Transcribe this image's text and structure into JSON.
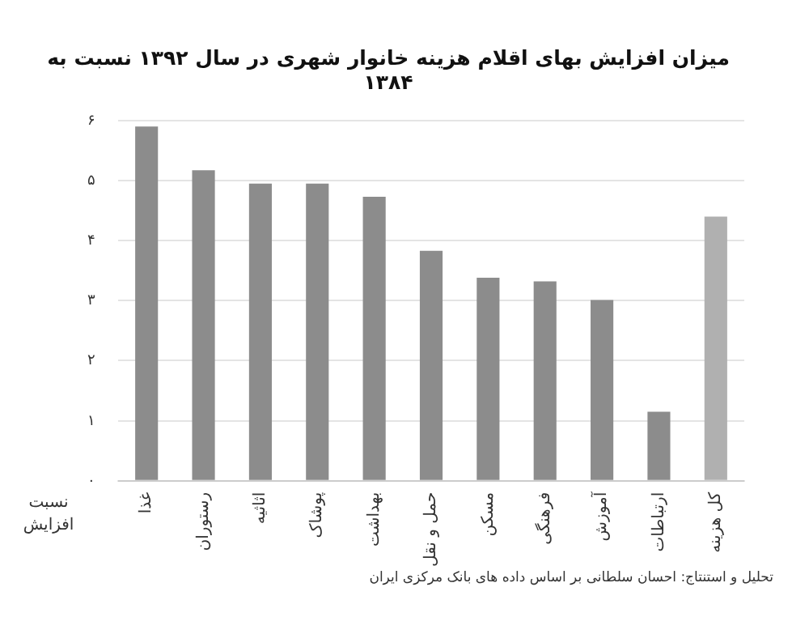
{
  "chart_data": {
    "type": "bar",
    "title": "میزان افزایش بهای اقلام هزینه خانوار شهری در سال ۱۳۹۲ نسبت به ۱۳۸۴",
    "xlabel": "نسبت افزایش",
    "categories": [
      "غذا",
      "رستوران",
      "اثاثیه",
      "پوشاک",
      "بهداشت",
      "حمل و نقل",
      "مسکن",
      "فرهنگی",
      "آموزش",
      "ارتباطات",
      "کل هزینه"
    ],
    "values": [
      5.9,
      5.17,
      4.95,
      4.95,
      4.73,
      3.83,
      3.38,
      3.32,
      3.01,
      1.15,
      4.4
    ],
    "colors": [
      "#8c8c8c",
      "#8c8c8c",
      "#8c8c8c",
      "#8c8c8c",
      "#8c8c8c",
      "#8c8c8c",
      "#8c8c8c",
      "#8c8c8c",
      "#8c8c8c",
      "#8c8c8c",
      "#b0b0b0"
    ],
    "ylim": [
      0,
      6
    ],
    "yticks": [
      {
        "value": 0,
        "label": "۰"
      },
      {
        "value": 1,
        "label": "۱"
      },
      {
        "value": 2,
        "label": "۲"
      },
      {
        "value": 3,
        "label": "۳"
      },
      {
        "value": 4,
        "label": "۴"
      },
      {
        "value": 5,
        "label": "۵"
      },
      {
        "value": 6,
        "label": "۶"
      }
    ],
    "grid": "y",
    "legend": false,
    "annotations": [
      "تحلیل و استنتاج: احسان سلطانی بر اساس داده های بانک مرکزی ایران"
    ]
  }
}
